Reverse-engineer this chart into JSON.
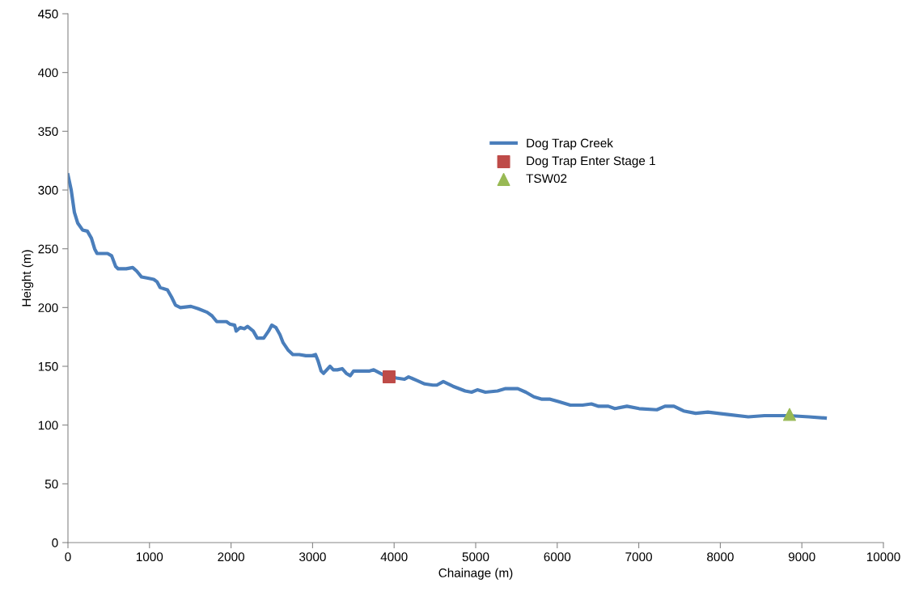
{
  "chart_data": {
    "type": "line",
    "xlabel": "Chainage (m)",
    "ylabel": "Height (m)",
    "xlim": [
      0,
      10000
    ],
    "ylim": [
      0,
      450
    ],
    "xticks": [
      0,
      1000,
      2000,
      3000,
      4000,
      5000,
      6000,
      7000,
      8000,
      9000,
      10000
    ],
    "yticks": [
      0,
      50,
      100,
      150,
      200,
      250,
      300,
      350,
      400,
      450
    ],
    "grid": false,
    "legend": "top right",
    "series": [
      {
        "name": "Dog Trap Creek",
        "color": "#4a7ebb",
        "marker": "none",
        "line_style": "solid",
        "x": [
          0,
          40,
          79,
          119,
          179,
          238,
          288,
          327,
          357,
          486,
          536,
          585,
          615,
          714,
          794,
          843,
          903,
          982,
          1052,
          1091,
          1131,
          1220,
          1270,
          1319,
          1379,
          1508,
          1597,
          1706,
          1766,
          1825,
          1895,
          1944,
          1984,
          2044,
          2063,
          2113,
          2163,
          2202,
          2272,
          2321,
          2401,
          2460,
          2500,
          2550,
          2599,
          2639,
          2698,
          2758,
          2837,
          2917,
          2986,
          3036,
          3065,
          3105,
          3135,
          3214,
          3254,
          3304,
          3363,
          3413,
          3462,
          3502,
          3700,
          3750,
          3859,
          4028,
          4127,
          4177,
          4276,
          4375,
          4474,
          4524,
          4603,
          4722,
          4871,
          4950,
          5020,
          5119,
          5268,
          5367,
          5516,
          5615,
          5714,
          5813,
          5913,
          6012,
          6161,
          6310,
          6419,
          6508,
          6627,
          6706,
          6855,
          7004,
          7222,
          7321,
          7431,
          7550,
          7698,
          7847,
          8095,
          8343,
          8542,
          8839,
          9087,
          9286
        ],
        "values": [
          313,
          300,
          281,
          272,
          266,
          265,
          259,
          250,
          246,
          246,
          244,
          235,
          233,
          233,
          234,
          231,
          226,
          225,
          224,
          222,
          217,
          215,
          209,
          202,
          200,
          201,
          199,
          196,
          193,
          188,
          188,
          188,
          186,
          185,
          180,
          183,
          182,
          184,
          180,
          174,
          174,
          180,
          185,
          183,
          177,
          170,
          164,
          160,
          160,
          159,
          159,
          160,
          155,
          146,
          144,
          150,
          147,
          147,
          148,
          144,
          142,
          146,
          146,
          147,
          143,
          140,
          139,
          141,
          138,
          135,
          134,
          134,
          137,
          133,
          129,
          128,
          130,
          128,
          129,
          131,
          131,
          128,
          124,
          122,
          122,
          120,
          117,
          117,
          118,
          116,
          116,
          114,
          116,
          114,
          113,
          116,
          116,
          112,
          110,
          111,
          109,
          107,
          108,
          108,
          107,
          106
        ]
      },
      {
        "name": "Dog Trap Enter Stage 1",
        "type": "scatter",
        "color": "#be4b48",
        "marker": "square",
        "x": [
          3938
        ],
        "values": [
          141
        ]
      },
      {
        "name": "TSW02",
        "type": "scatter",
        "color": "#98b954",
        "marker": "triangle",
        "x": [
          8849
        ],
        "values": [
          109
        ]
      }
    ]
  }
}
